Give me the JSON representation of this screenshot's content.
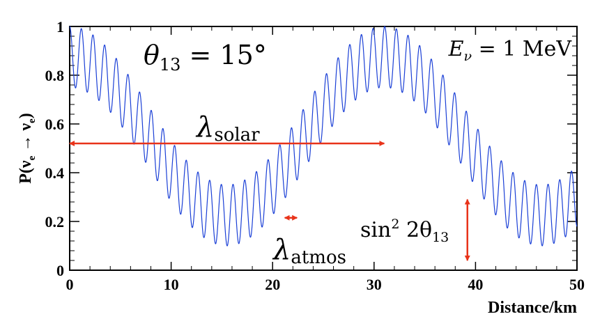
{
  "chart_data": {
    "type": "line",
    "xlabel": "Distance/km",
    "ylabel_main": "P(ν",
    "ylabel_sub1": "e",
    "ylabel_arrow": " → ν",
    "ylabel_sub2": "e",
    "ylabel_close": ")",
    "xlim": [
      0,
      50
    ],
    "ylim": [
      0,
      1
    ],
    "x_ticks": [
      "0",
      "10",
      "20",
      "30",
      "40",
      "50"
    ],
    "y_ticks": [
      "0",
      "0.2",
      "0.4",
      "0.6",
      "0.8",
      "1"
    ],
    "series": [
      {
        "color": "#1a3fd6",
        "model": {
          "sin2_2theta13": 0.25,
          "solar_amplitude": 0.65,
          "solar_wavelength_km": 31,
          "atmos_wavelength_km": 1.15
        }
      }
    ],
    "annotations": {
      "theta_symbol": "θ",
      "theta_sub": "13",
      "theta_value": " = 15°",
      "energy_symbol": "E",
      "energy_sub": "ν",
      "energy_value": " = 1 MeV",
      "lambda_solar_symbol": "λ",
      "lambda_solar_sub": "solar",
      "lambda_atmos_symbol": "λ",
      "lambda_atmos_sub": "atmos",
      "sin_label": "sin",
      "sin_sup": "2",
      "sin_arg": " 2θ",
      "sin_sub": "13"
    },
    "arrows": {
      "lambda_solar": {
        "x_start": 0,
        "x_end": 31,
        "y": 0.52
      },
      "lambda_atmos": {
        "x_start": 21.2,
        "x_end": 22.4,
        "y": 0.215
      },
      "amplitude": {
        "x": 39.2,
        "y_start": 0.29,
        "y_end": 0.04
      }
    },
    "arrow_color": "#e8331a",
    "grid": false
  }
}
